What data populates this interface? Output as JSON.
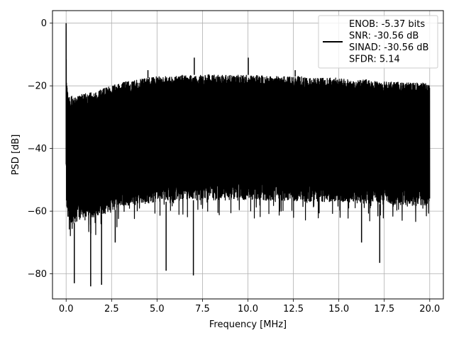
{
  "chart_data": {
    "type": "line",
    "title": "",
    "xlabel": "Frequency [MHz]",
    "ylabel": "PSD [dB]",
    "xlim": [
      -0.75,
      20.75
    ],
    "ylim": [
      -88,
      4
    ],
    "xticks": [
      0.0,
      2.5,
      5.0,
      7.5,
      10.0,
      12.5,
      15.0,
      17.5,
      20.0
    ],
    "xtick_labels": [
      "0.0",
      "2.5",
      "5.0",
      "7.5",
      "10.0",
      "12.5",
      "15.0",
      "17.5",
      "20.0"
    ],
    "yticks": [
      0,
      -20,
      -40,
      -60,
      -80
    ],
    "ytick_labels": [
      "0",
      "−20",
      "−40",
      "−60",
      "−80"
    ],
    "grid": true,
    "legend_position": "top-right",
    "legend_entries": [
      "ENOB: -5.37 bits",
      "SNR: -30.56 dB",
      "SINAD: -30.56 dB",
      "SFDR: 5.14"
    ],
    "series": [
      {
        "color": "#000000",
        "x": [
          0.0,
          0.02,
          0.05,
          0.1,
          0.2,
          0.4,
          0.7,
          1.0,
          1.5,
          2.0,
          2.5,
          3.0,
          3.5,
          4.0,
          4.5,
          5.0,
          5.5,
          6.0,
          6.5,
          7.0,
          7.5,
          8.0,
          8.5,
          9.0,
          9.5,
          10.0,
          10.5,
          11.0,
          11.5,
          12.0,
          12.5,
          13.0,
          13.5,
          14.0,
          14.5,
          15.0,
          15.5,
          16.0,
          16.5,
          17.0,
          17.5,
          18.0,
          18.5,
          19.0,
          19.5,
          20.0
        ],
        "upper": [
          0.0,
          -16,
          -20,
          -22,
          -23,
          -23.5,
          -23,
          -22.5,
          -22,
          -21,
          -20,
          -19,
          -18.5,
          -18,
          -17.5,
          -17,
          -17,
          -17,
          -16.5,
          -16.5,
          -16.5,
          -16.5,
          -16.5,
          -16.5,
          -16.5,
          -16.5,
          -16.5,
          -17,
          -17,
          -17,
          -17,
          -17,
          -17.5,
          -17.5,
          -17.5,
          -17.5,
          -18,
          -18,
          -18,
          -18.5,
          -18.5,
          -18.5,
          -19,
          -19,
          -19,
          -19
        ],
        "lower": [
          -45,
          -60,
          -63,
          -64,
          -64,
          -64,
          -63,
          -62,
          -62,
          -61,
          -60,
          -59,
          -58,
          -58,
          -57.5,
          -57,
          -57,
          -57,
          -56.5,
          -56.5,
          -56.5,
          -56.5,
          -56.5,
          -56.5,
          -56.5,
          -56.5,
          -56.5,
          -56.5,
          -57,
          -57,
          -57,
          -57,
          -57,
          -57,
          -57,
          -57,
          -57,
          -57.5,
          -57.5,
          -57.5,
          -58,
          -58,
          -58,
          -58.5,
          -58.5,
          -58.5
        ],
        "spikes_up": [
          [
            7.05,
            -11
          ],
          [
            10.02,
            -11
          ],
          [
            4.5,
            -15
          ],
          [
            12.6,
            -15
          ]
        ],
        "spikes_down": [
          [
            0.45,
            -83
          ],
          [
            1.35,
            -84
          ],
          [
            1.95,
            -83.5
          ],
          [
            5.5,
            -79
          ],
          [
            7.0,
            -80.5
          ],
          [
            17.25,
            -76.5
          ],
          [
            2.7,
            -70
          ],
          [
            16.25,
            -70
          ]
        ]
      }
    ]
  }
}
